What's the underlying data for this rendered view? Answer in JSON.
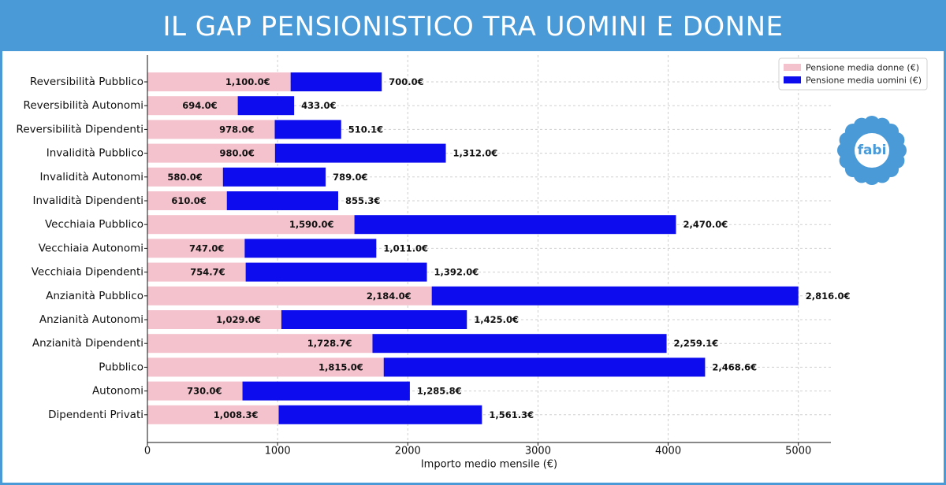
{
  "title": "IL GAP PENSIONISTICO TRA UOMINI E DONNE",
  "colors": {
    "banner": "#4a9ad8",
    "women": "#f4c2cc",
    "men": "#0c0cee",
    "logo": "#4a9ad8"
  },
  "logo": {
    "text": "fabi",
    "icon": "flower-logo-icon"
  },
  "chart_data": {
    "type": "bar",
    "orientation": "horizontal",
    "stacked": true,
    "xlabel": "Importo medio mensile (€)",
    "ylabel": "",
    "xlim": [
      0,
      5250
    ],
    "xticks": [
      0,
      1000,
      2000,
      3000,
      4000,
      5000
    ],
    "grid": true,
    "legend_position": "top-right",
    "categories": [
      "Reversibilità Pubblico",
      "Reversibilità Autonomi",
      "Reversibilità Dipendenti",
      "Invalidità Pubblico",
      "Invalidità Autonomi",
      "Invalidità Dipendenti",
      "Vecchiaia Pubblico",
      "Vecchiaia Autonomi",
      "Vecchiaia Dipendenti",
      "Anzianità Pubblico",
      "Anzianità Autonomi",
      "Anzianità Dipendenti",
      "Pubblico",
      "Autonomi",
      "Dipendenti Privati"
    ],
    "series": [
      {
        "name": "Pensione media donne (€)",
        "values": [
          1100.0,
          694.0,
          978.0,
          980.0,
          580.0,
          610.0,
          1590.0,
          747.0,
          754.7,
          2184.0,
          1029.0,
          1728.7,
          1815.0,
          730.0,
          1008.3
        ],
        "labels": [
          "1,100.0€",
          "694.0€",
          "978.0€",
          "980.0€",
          "580.0€",
          "610.0€",
          "1,590.0€",
          "747.0€",
          "754.7€",
          "2,184.0€",
          "1,029.0€",
          "1,728.7€",
          "1,815.0€",
          "730.0€",
          "1,008.3€"
        ]
      },
      {
        "name": "Pensione media uomini (€)",
        "values": [
          700.0,
          433.0,
          510.1,
          1312.0,
          789.0,
          855.3,
          2470.0,
          1011.0,
          1392.0,
          2816.0,
          1425.0,
          2259.1,
          2468.6,
          1285.8,
          1561.3
        ],
        "labels": [
          "700.0€",
          "433.0€",
          "510.1€",
          "1,312.0€",
          "789.0€",
          "855.3€",
          "2,470.0€",
          "1,011.0€",
          "1,392.0€",
          "2,816.0€",
          "1,425.0€",
          "2,259.1€",
          "2,468.6€",
          "1,285.8€",
          "1,561.3€"
        ]
      }
    ]
  }
}
